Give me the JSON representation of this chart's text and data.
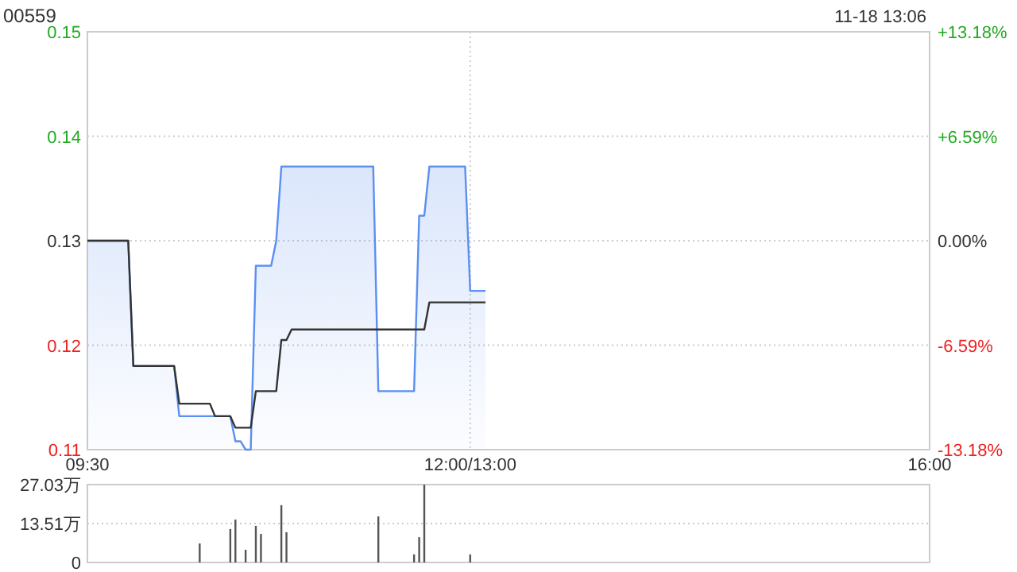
{
  "chart_data": [
    {
      "type": "line",
      "title": "00559",
      "subtitle": "11-18 13:06",
      "grid": true,
      "categories": [
        "09:30",
        null,
        null,
        null,
        null,
        null,
        null,
        null,
        null,
        null,
        null,
        null,
        null,
        null,
        null,
        null,
        null,
        null,
        null,
        null,
        null,
        null,
        null,
        null,
        null,
        null,
        null,
        null,
        null,
        null,
        null,
        null,
        null,
        null,
        null,
        null,
        null,
        null,
        null,
        null,
        null,
        null,
        null,
        null,
        null,
        null,
        null,
        null,
        null,
        null,
        null,
        null,
        null,
        null,
        null,
        null,
        null,
        null,
        null,
        null,
        null,
        null,
        null,
        null,
        null,
        null,
        null,
        null,
        null,
        null,
        null,
        null,
        null,
        null,
        null,
        "12:00/13:00",
        null,
        null,
        null,
        null,
        null,
        null,
        null,
        null,
        null,
        null,
        null,
        null,
        null,
        null,
        null,
        null,
        null,
        null,
        null,
        null,
        null,
        null,
        null,
        null,
        null,
        null,
        null,
        null,
        null,
        null,
        null,
        null,
        null,
        null,
        null,
        null,
        null,
        null,
        null,
        null,
        null,
        null,
        null,
        null,
        null,
        null,
        null,
        null,
        null,
        null,
        null,
        null,
        null,
        null,
        null,
        null,
        null,
        null,
        null,
        null,
        null,
        null,
        null,
        null,
        null,
        null,
        null,
        null,
        null,
        null,
        null,
        null,
        null,
        null,
        null,
        null,
        null,
        null,
        null,
        null,
        null,
        null,
        null,
        null,
        null,
        null,
        null,
        null,
        null,
        "16:00"
      ],
      "ylim": [
        0.11,
        0.15
      ],
      "yticks": [
        0.11,
        0.12,
        0.13,
        0.14,
        0.15
      ],
      "y2lim": [
        -13.18,
        13.18
      ],
      "y2ticks": [
        {
          "value": -13.18,
          "label": "-13.18%"
        },
        {
          "value": -6.59,
          "label": "-6.59%"
        },
        {
          "value": 0,
          "label": "0.00%"
        },
        {
          "value": 6.59,
          "label": "+6.59%"
        },
        {
          "value": 13.18,
          "label": "+13.18%"
        }
      ],
      "series": [
        {
          "type": "area",
          "color": "#5b8ff0",
          "values": [
            0.13,
            0.13,
            0.13,
            0.13,
            0.13,
            0.13,
            0.13,
            0.13,
            0.13,
            0.118,
            0.118,
            0.118,
            0.118,
            0.118,
            0.118,
            0.118,
            0.118,
            0.118,
            0.1132,
            0.1132,
            0.1132,
            0.1132,
            0.1132,
            0.1132,
            0.1132,
            0.1132,
            0.1132,
            0.1132,
            0.1132,
            0.1108,
            0.1108,
            0.11,
            0.11,
            0.1276,
            0.1276,
            0.1276,
            0.1276,
            0.13,
            0.1371,
            0.1371,
            0.1371,
            0.1371,
            0.1371,
            0.1371,
            0.1371,
            0.1371,
            0.1371,
            0.1371,
            0.1371,
            0.1371,
            0.1371,
            0.1371,
            0.1371,
            0.1371,
            0.1371,
            0.1371,
            0.1371,
            0.1156,
            0.1156,
            0.1156,
            0.1156,
            0.1156,
            0.1156,
            0.1156,
            0.1156,
            0.1324,
            0.1324,
            0.1371,
            0.1371,
            0.1371,
            0.1371,
            0.1371,
            0.1371,
            0.1371,
            0.1371,
            0.1252,
            0.1252,
            0.1252,
            0.1252,
            null,
            null,
            null,
            null,
            null,
            null,
            null,
            null,
            null,
            null,
            null,
            null,
            null,
            null,
            null,
            null,
            null,
            null,
            null,
            null,
            null,
            null,
            null,
            null,
            null,
            null,
            null,
            null,
            null,
            null,
            null,
            null,
            null,
            null,
            null,
            null,
            null,
            null,
            null,
            null,
            null,
            null,
            null,
            null,
            null,
            null,
            null,
            null,
            null,
            null,
            null,
            null,
            null,
            null,
            null,
            null,
            null,
            null,
            null,
            null,
            null,
            null,
            null,
            null,
            null,
            null,
            null,
            null,
            null,
            null,
            null,
            null,
            null,
            null,
            null,
            null,
            null,
            null,
            null,
            null,
            null,
            null,
            null,
            null,
            null,
            null,
            null
          ]
        },
        {
          "type": "line",
          "color": "#333333",
          "values": [
            0.13,
            0.13,
            0.13,
            0.13,
            0.13,
            0.13,
            0.13,
            0.13,
            0.13,
            0.118,
            0.118,
            0.118,
            0.118,
            0.118,
            0.118,
            0.118,
            0.118,
            0.118,
            0.1144,
            0.1144,
            0.1144,
            0.1144,
            0.1144,
            0.1144,
            0.1144,
            0.1132,
            0.1132,
            0.1132,
            0.1132,
            0.1121,
            0.1121,
            0.1121,
            0.1121,
            0.1156,
            0.1156,
            0.1156,
            0.1156,
            0.1156,
            0.1205,
            0.1205,
            0.1215,
            0.1215,
            0.1215,
            0.1215,
            0.1215,
            0.1215,
            0.1215,
            0.1215,
            0.1215,
            0.1215,
            0.1215,
            0.1215,
            0.1215,
            0.1215,
            0.1215,
            0.1215,
            0.1215,
            0.1215,
            0.1215,
            0.1215,
            0.1215,
            0.1215,
            0.1215,
            0.1215,
            0.1215,
            0.1215,
            0.1215,
            0.1241,
            0.1241,
            0.1241,
            0.1241,
            0.1241,
            0.1241,
            0.1241,
            0.1241,
            0.1241,
            0.1241,
            0.1241,
            0.1241,
            null,
            null,
            null,
            null,
            null,
            null,
            null,
            null,
            null,
            null,
            null,
            null,
            null,
            null,
            null,
            null,
            null,
            null,
            null,
            null,
            null,
            null,
            null,
            null,
            null,
            null,
            null,
            null,
            null,
            null,
            null,
            null,
            null,
            null,
            null,
            null,
            null,
            null,
            null,
            null,
            null,
            null,
            null,
            null,
            null,
            null,
            null,
            null,
            null,
            null,
            null,
            null,
            null,
            null,
            null,
            null,
            null,
            null,
            null,
            null,
            null,
            null,
            null,
            null,
            null,
            null,
            null,
            null,
            null,
            null,
            null,
            null,
            null,
            null,
            null,
            null,
            null,
            null,
            null,
            null,
            null,
            null,
            null,
            null,
            null,
            null,
            null
          ]
        }
      ]
    },
    {
      "type": "bar",
      "grid": "y",
      "categories": [
        null,
        null,
        null,
        null,
        null,
        null,
        null,
        null,
        null,
        null,
        null,
        null,
        null,
        null,
        null,
        null,
        null,
        null,
        null,
        null,
        null,
        null,
        null,
        null,
        null,
        null,
        null,
        null,
        null,
        null,
        null,
        null,
        null,
        null,
        null,
        null,
        null,
        null,
        null,
        null,
        null,
        null,
        null,
        null,
        null,
        null,
        null,
        null,
        null,
        null,
        null,
        null,
        null,
        null,
        null,
        null,
        null,
        null,
        null,
        null,
        null,
        null,
        null,
        null,
        null,
        null,
        null,
        null,
        null,
        null,
        null,
        null,
        null,
        null,
        null,
        null,
        null,
        null,
        null,
        null,
        null,
        null,
        null,
        null,
        null,
        null,
        null,
        null,
        null,
        null,
        null,
        null,
        null,
        null,
        null,
        null,
        null,
        null,
        null,
        null,
        null,
        null,
        null,
        null,
        null,
        null,
        null,
        null,
        null,
        null,
        null,
        null,
        null,
        null,
        null,
        null,
        null,
        null,
        null,
        null,
        null,
        null,
        null,
        null,
        null,
        null,
        null,
        null,
        null,
        null,
        null,
        null,
        null,
        null,
        null,
        null,
        null,
        null,
        null,
        null,
        null,
        null,
        null,
        null,
        null,
        null,
        null,
        null,
        null,
        null,
        null,
        null,
        null,
        null,
        null,
        null,
        null,
        null,
        null,
        null,
        null,
        null,
        null,
        null,
        null,
        null
      ],
      "ylim": [
        0,
        27.03
      ],
      "yticks": [
        0,
        {
          "value": 13.51,
          "label": "13.51万"
        },
        {
          "value": 27.03,
          "label": "27.03万"
        }
      ],
      "series": [
        {
          "color": "#555555",
          "values": [
            null,
            null,
            null,
            null,
            null,
            null,
            null,
            null,
            null,
            null,
            null,
            null,
            null,
            null,
            null,
            null,
            null,
            null,
            null,
            null,
            null,
            null,
            6.6,
            null,
            null,
            null,
            null,
            null,
            11.6,
            14.9,
            null,
            4.4,
            null,
            12.7,
            9.9,
            null,
            null,
            null,
            19.9,
            10.5,
            null,
            null,
            null,
            null,
            null,
            null,
            null,
            null,
            null,
            null,
            null,
            null,
            null,
            null,
            null,
            null,
            null,
            16.0,
            null,
            null,
            null,
            null,
            null,
            null,
            2.8,
            8.8,
            27.0,
            null,
            null,
            null,
            null,
            null,
            null,
            null,
            null,
            2.8,
            null,
            null,
            null,
            null,
            null,
            null,
            null,
            null,
            null,
            null,
            null,
            null,
            null,
            null,
            null,
            null,
            null,
            null,
            null,
            null,
            null,
            null,
            null,
            null,
            null,
            null,
            null,
            null,
            null,
            null,
            null,
            null,
            null,
            null,
            null,
            null,
            null,
            null,
            null,
            null,
            null,
            null,
            null,
            null,
            null,
            null,
            null,
            null,
            null,
            null,
            null,
            null,
            null,
            null,
            null,
            null,
            null,
            null,
            null,
            null,
            null,
            null,
            null,
            null,
            null,
            null,
            null,
            null,
            null,
            null,
            null,
            null,
            null,
            null,
            null,
            null,
            null,
            null,
            null,
            null,
            null,
            null,
            null,
            null,
            null,
            null,
            null,
            null,
            null,
            null
          ]
        }
      ]
    }
  ]
}
